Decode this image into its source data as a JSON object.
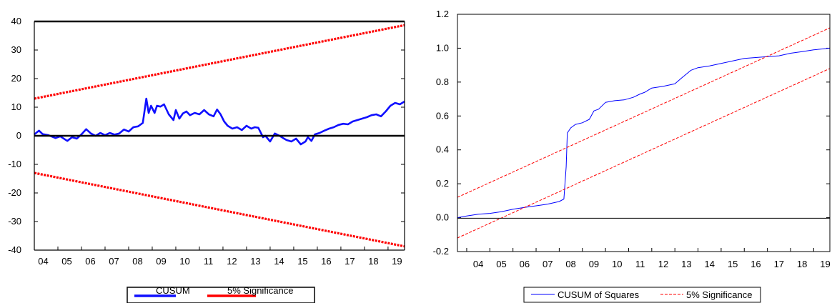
{
  "chart_data": [
    {
      "type": "line",
      "title": "",
      "xlabel": "",
      "ylabel": "",
      "x_range": [
        2004.0,
        2019.7
      ],
      "ylim": [
        -40,
        40
      ],
      "yticks": [
        40,
        30,
        20,
        10,
        0,
        -10,
        -20,
        -30,
        -40
      ],
      "ytick_labels": [
        "40",
        "30",
        "20",
        "10",
        "0",
        "-10",
        "-20",
        "-30",
        "-40"
      ],
      "xtick_labels": [
        "04",
        "05",
        "06",
        "07",
        "08",
        "09",
        "10",
        "11",
        "12",
        "13",
        "14",
        "15",
        "16",
        "17",
        "18",
        "19"
      ],
      "grid": false,
      "legend": {
        "placement": "bottom-center",
        "entries": [
          "CUSUM",
          "5% Significance"
        ]
      },
      "colors": {
        "cusum": "#1010ff",
        "significance": "#ff0000"
      },
      "series": [
        {
          "name": "CUSUM",
          "color": "#1010ff",
          "x": [
            2004.0,
            2004.2,
            2004.35,
            2004.6,
            2004.9,
            2005.1,
            2005.4,
            2005.6,
            2005.8,
            2006.0,
            2006.2,
            2006.4,
            2006.6,
            2006.8,
            2007.0,
            2007.2,
            2007.4,
            2007.6,
            2007.8,
            2008.0,
            2008.2,
            2008.4,
            2008.6,
            2008.75,
            2008.85,
            2008.95,
            2009.1,
            2009.2,
            2009.35,
            2009.5,
            2009.7,
            2009.9,
            2010.0,
            2010.15,
            2010.3,
            2010.45,
            2010.6,
            2010.8,
            2011.0,
            2011.2,
            2011.4,
            2011.6,
            2011.75,
            2011.9,
            2012.05,
            2012.2,
            2012.4,
            2012.6,
            2012.8,
            2013.0,
            2013.2,
            2013.35,
            2013.5,
            2013.7,
            2013.8,
            2014.0,
            2014.2,
            2014.4,
            2014.55,
            2014.7,
            2014.9,
            2015.1,
            2015.3,
            2015.5,
            2015.6,
            2015.75,
            2015.9,
            2016.1,
            2016.3,
            2016.5,
            2016.7,
            2016.9,
            2017.1,
            2017.3,
            2017.5,
            2017.7,
            2017.9,
            2018.1,
            2018.3,
            2018.5,
            2018.7,
            2018.9,
            2019.1,
            2019.3,
            2019.5,
            2019.7
          ],
          "values": [
            0.5,
            1.8,
            0.6,
            0.2,
            -0.8,
            -0.2,
            -1.8,
            -0.5,
            -1.0,
            0.5,
            2.3,
            0.8,
            0.0,
            1.0,
            0.2,
            1.0,
            0.4,
            0.8,
            2.2,
            1.5,
            3.0,
            3.3,
            4.5,
            13.0,
            8.0,
            10.5,
            8.0,
            10.5,
            10.2,
            11.0,
            7.5,
            5.5,
            9.0,
            6.0,
            7.8,
            8.5,
            7.2,
            8.0,
            7.5,
            9.0,
            7.5,
            6.8,
            9.2,
            7.5,
            5.0,
            3.5,
            2.5,
            3.0,
            2.0,
            3.5,
            2.5,
            3.0,
            2.8,
            -0.5,
            0.0,
            -2.0,
            0.8,
            0.0,
            -0.8,
            -1.5,
            -2.0,
            -1.0,
            -3.0,
            -2.0,
            -0.5,
            -1.8,
            0.5,
            1.0,
            1.8,
            2.5,
            3.0,
            3.8,
            4.2,
            4.0,
            5.0,
            5.5,
            6.0,
            6.5,
            7.2,
            7.5,
            6.8,
            8.5,
            10.5,
            11.5,
            11.0,
            12.0
          ]
        },
        {
          "name": "5% Significance",
          "color": "#ff0000",
          "x": [
            2004.0,
            2019.7
          ],
          "values": [
            13.0,
            38.7
          ]
        },
        {
          "name": "5% Significance",
          "color": "#ff0000",
          "x": [
            2004.0,
            2019.7
          ],
          "values": [
            -13.0,
            -38.7
          ]
        }
      ]
    },
    {
      "type": "line",
      "title": "",
      "xlabel": "",
      "ylabel": "",
      "x_range": [
        2003.6,
        2019.7
      ],
      "ylim": [
        -0.2,
        1.2
      ],
      "yticks": [
        1.2,
        1.0,
        0.8,
        0.6,
        0.4,
        0.2,
        0.0,
        -0.2
      ],
      "ytick_labels": [
        "1.2",
        "1.0",
        "0.8",
        "0.6",
        "0.4",
        "0.2",
        "0.0",
        "-0.2"
      ],
      "xtick_labels": [
        "04",
        "05",
        "06",
        "07",
        "08",
        "09",
        "10",
        "11",
        "12",
        "13",
        "14",
        "15",
        "16",
        "17",
        "18",
        "19"
      ],
      "grid": false,
      "legend": {
        "placement": "bottom-center",
        "entries": [
          "CUSUM of Squares",
          "5% Significance"
        ]
      },
      "colors": {
        "cusum_sq": "#0000ff",
        "significance": "#ff0000"
      },
      "series": [
        {
          "name": "CUSUM of Squares",
          "color": "#0000ff",
          "x": [
            2003.6,
            2004.0,
            2004.5,
            2005.0,
            2005.5,
            2006.0,
            2006.5,
            2007.0,
            2007.5,
            2008.0,
            2008.2,
            2008.3,
            2008.35,
            2008.5,
            2008.7,
            2009.0,
            2009.3,
            2009.5,
            2009.7,
            2010.0,
            2010.4,
            2010.8,
            2011.2,
            2011.5,
            2011.7,
            2012.0,
            2012.5,
            2013.0,
            2013.3,
            2013.7,
            2014.0,
            2014.5,
            2015.0,
            2015.5,
            2016.0,
            2016.5,
            2017.0,
            2017.5,
            2018.0,
            2018.5,
            2019.0,
            2019.7
          ],
          "values": [
            0.0,
            0.01,
            0.02,
            0.025,
            0.035,
            0.05,
            0.06,
            0.07,
            0.08,
            0.095,
            0.11,
            0.3,
            0.5,
            0.53,
            0.55,
            0.56,
            0.58,
            0.63,
            0.64,
            0.68,
            0.69,
            0.695,
            0.71,
            0.73,
            0.74,
            0.765,
            0.775,
            0.79,
            0.825,
            0.87,
            0.885,
            0.895,
            0.91,
            0.925,
            0.94,
            0.945,
            0.95,
            0.955,
            0.97,
            0.98,
            0.99,
            1.0
          ]
        },
        {
          "name": "5% Significance",
          "color": "#ff0000",
          "x": [
            2003.6,
            2019.7
          ],
          "values": [
            0.12,
            1.12
          ]
        },
        {
          "name": "5% Significance",
          "color": "#ff0000",
          "x": [
            2003.6,
            2019.7
          ],
          "values": [
            -0.12,
            0.88
          ]
        }
      ]
    }
  ]
}
